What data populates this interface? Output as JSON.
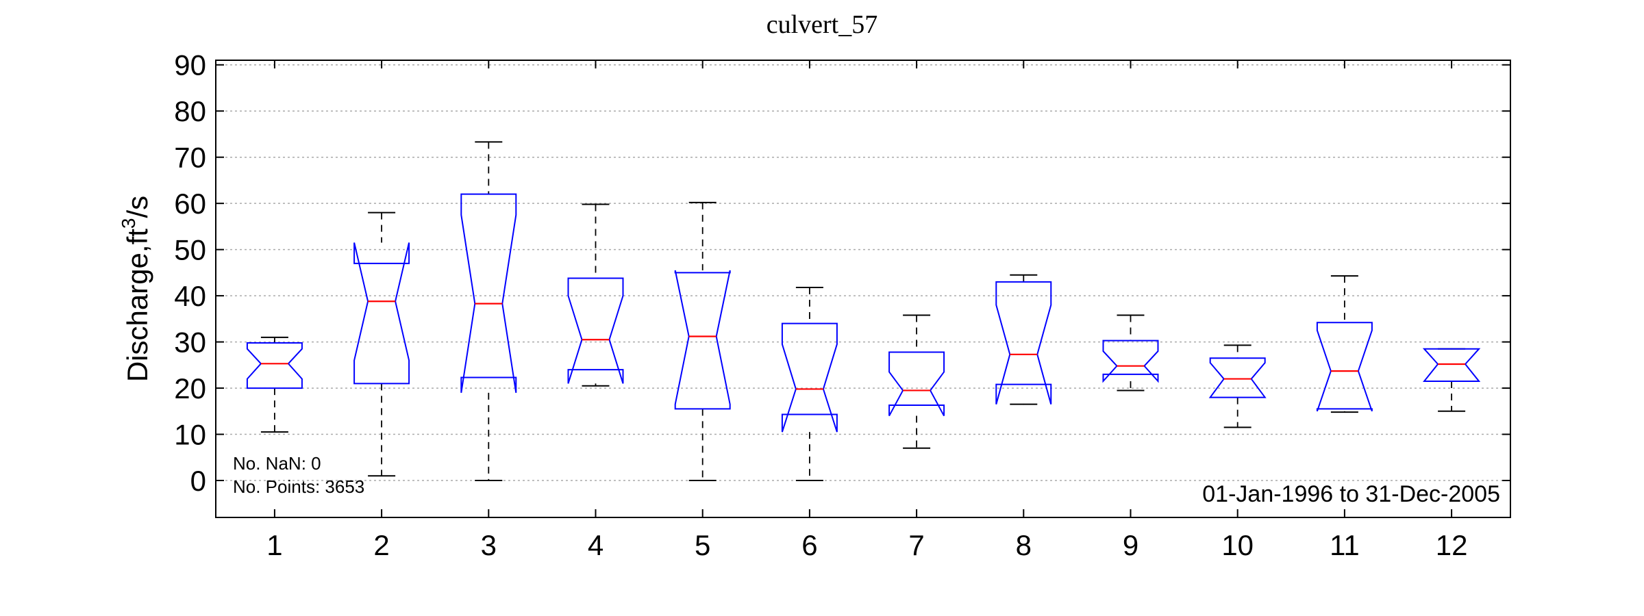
{
  "chart_data": {
    "type": "boxplot",
    "title": "culvert_57",
    "ylabel": "Discharge,ft³/s",
    "ylabel_base": "Discharge,ft",
    "ylabel_sup": "3",
    "ylabel_tail": "/s",
    "ylim": [
      -8,
      91
    ],
    "yticks": [
      0,
      10,
      20,
      30,
      40,
      50,
      60,
      70,
      80,
      90
    ],
    "grid": true,
    "categories": [
      "1",
      "2",
      "3",
      "4",
      "5",
      "6",
      "7",
      "8",
      "9",
      "10",
      "11",
      "12"
    ],
    "notched": true,
    "colors": {
      "box": "#0000ff",
      "median": "#ff0000",
      "whisker": "#000000",
      "grid": "#aaaaaa"
    },
    "boxes": [
      {
        "x": "1",
        "whisker_low": 10.5,
        "q1": 20.0,
        "notch_low": 22.0,
        "median": 25.3,
        "notch_high": 28.5,
        "q3": 29.8,
        "whisker_high": 31.0
      },
      {
        "x": "2",
        "whisker_low": 1.0,
        "q1": 21.0,
        "notch_low": 26.0,
        "median": 38.8,
        "notch_high": 51.5,
        "q3": 47.0,
        "whisker_high": 58.0
      },
      {
        "x": "3",
        "whisker_low": 0.0,
        "q1": 22.3,
        "notch_low": 19.0,
        "median": 38.3,
        "notch_high": 57.5,
        "q3": 62.0,
        "whisker_high": 73.3
      },
      {
        "x": "4",
        "whisker_low": 20.5,
        "q1": 24.0,
        "notch_low": 21.0,
        "median": 30.5,
        "notch_high": 40.0,
        "q3": 43.8,
        "whisker_high": 59.8
      },
      {
        "x": "5",
        "whisker_low": 0.0,
        "q1": 15.5,
        "notch_low": 16.5,
        "median": 31.2,
        "notch_high": 45.5,
        "q3": 45.0,
        "whisker_high": 60.2
      },
      {
        "x": "6",
        "whisker_low": 0.0,
        "q1": 14.3,
        "notch_low": 10.5,
        "median": 19.8,
        "notch_high": 29.5,
        "q3": 34.0,
        "whisker_high": 41.8
      },
      {
        "x": "7",
        "whisker_low": 7.0,
        "q1": 16.3,
        "notch_low": 14.0,
        "median": 19.5,
        "notch_high": 23.5,
        "q3": 27.8,
        "whisker_high": 35.8
      },
      {
        "x": "8",
        "whisker_low": 16.5,
        "q1": 20.8,
        "notch_low": 16.5,
        "median": 27.3,
        "notch_high": 38.0,
        "q3": 43.0,
        "whisker_high": 44.5
      },
      {
        "x": "9",
        "whisker_low": 19.5,
        "q1": 23.0,
        "notch_low": 21.5,
        "median": 24.8,
        "notch_high": 28.0,
        "q3": 30.3,
        "whisker_high": 35.8
      },
      {
        "x": "10",
        "whisker_low": 11.5,
        "q1": 18.0,
        "notch_low": 18.0,
        "median": 22.0,
        "notch_high": 25.5,
        "q3": 26.5,
        "whisker_high": 29.3
      },
      {
        "x": "11",
        "whisker_low": 14.8,
        "q1": 15.5,
        "notch_low": 15.0,
        "median": 23.7,
        "notch_high": 32.5,
        "q3": 34.2,
        "whisker_high": 44.3
      },
      {
        "x": "12",
        "whisker_low": 15.0,
        "q1": 21.5,
        "notch_low": 21.5,
        "median": 25.2,
        "notch_high": 28.5,
        "q3": 28.5,
        "whisker_high": 28.5
      }
    ],
    "annotations": {
      "nan_label": "No. NaN: 0",
      "points_label": "No. Points: 3653",
      "date_range": "01-Jan-1996 to 31-Dec-2005"
    }
  }
}
